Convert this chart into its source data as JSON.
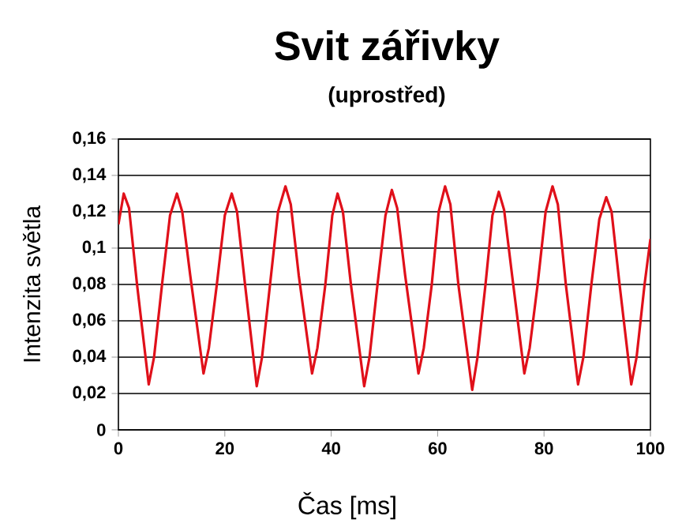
{
  "chart_data": {
    "type": "line",
    "title": "Svit zářivky",
    "subtitle": "(uprostřed)",
    "xlabel": "Čas [ms]",
    "ylabel": "Intenzita světla",
    "x": [
      0,
      1,
      2,
      3.5,
      5.7,
      6.7,
      8.2,
      9.7,
      11,
      12,
      13.5,
      16,
      17,
      18.5,
      20,
      21.3,
      22.3,
      23.8,
      26,
      27,
      28.5,
      30,
      31.4,
      32.4,
      33.9,
      36.4,
      37.4,
      38.9,
      40.2,
      41.2,
      42.2,
      43.7,
      46.2,
      47.2,
      48.7,
      50.2,
      51.4,
      52.4,
      53.9,
      56.4,
      57.4,
      58.9,
      60.2,
      61.4,
      62.4,
      63.9,
      66.5,
      67.5,
      69,
      70.3,
      71.5,
      72.5,
      74,
      76.3,
      77.3,
      78.8,
      80.3,
      81.6,
      82.6,
      84.1,
      86.4,
      87.4,
      88.9,
      90.4,
      91.7,
      92.7,
      94.2,
      96.4,
      97.4,
      98.9,
      100
    ],
    "series": [
      {
        "color": "#e0101a",
        "values": [
          0.113,
          0.13,
          0.122,
          0.08,
          0.025,
          0.04,
          0.08,
          0.118,
          0.13,
          0.12,
          0.085,
          0.031,
          0.045,
          0.08,
          0.118,
          0.13,
          0.12,
          0.08,
          0.024,
          0.04,
          0.08,
          0.12,
          0.134,
          0.124,
          0.085,
          0.031,
          0.045,
          0.08,
          0.118,
          0.13,
          0.12,
          0.08,
          0.024,
          0.04,
          0.08,
          0.118,
          0.132,
          0.122,
          0.085,
          0.031,
          0.045,
          0.08,
          0.12,
          0.134,
          0.124,
          0.08,
          0.022,
          0.04,
          0.08,
          0.118,
          0.131,
          0.121,
          0.085,
          0.031,
          0.045,
          0.08,
          0.12,
          0.134,
          0.124,
          0.08,
          0.025,
          0.04,
          0.08,
          0.116,
          0.128,
          0.12,
          0.08,
          0.025,
          0.04,
          0.08,
          0.105
        ]
      }
    ],
    "xlim": [
      0,
      100
    ],
    "xticks": [
      0,
      20,
      40,
      60,
      80,
      100
    ],
    "ylim": [
      0,
      0.16
    ],
    "yticks": [
      0,
      {
        "value": 0.02,
        "label": "0,02"
      },
      {
        "value": 0.04,
        "label": "0,04"
      },
      {
        "value": 0.06,
        "label": "0,06"
      },
      {
        "value": 0.08,
        "label": "0,08"
      },
      {
        "value": 0.1,
        "label": "0,1"
      },
      {
        "value": 0.12,
        "label": "0,12"
      },
      {
        "value": 0.14,
        "label": "0,14"
      },
      {
        "value": 0.16,
        "label": "0,16"
      }
    ],
    "grid": "y",
    "marker": "none",
    "line_style": "solid"
  }
}
